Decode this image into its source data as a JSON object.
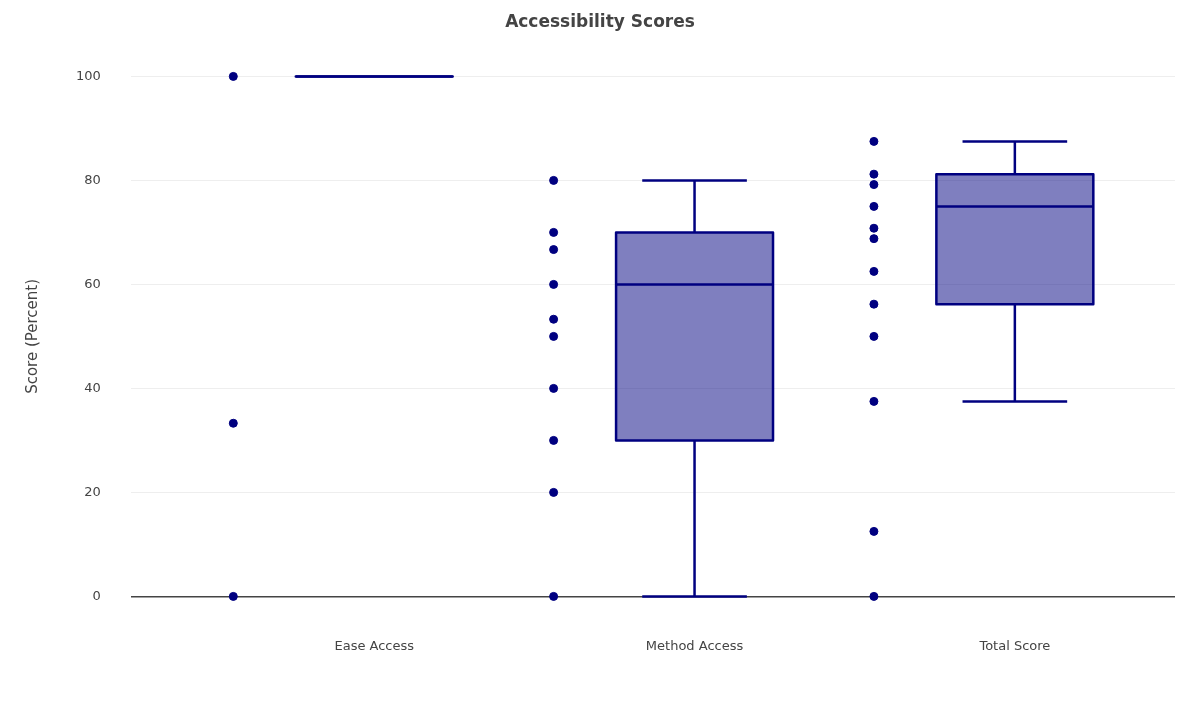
{
  "chart_data": {
    "type": "box",
    "title": "Accessibility Scores",
    "ylabel": "Score (Percent)",
    "categories": [
      "Ease Access",
      "Method Access",
      "Total Score"
    ],
    "ylim": [
      0,
      100
    ],
    "yticks": [
      0,
      20,
      40,
      60,
      80,
      100
    ],
    "grid": "y",
    "legend": false,
    "series": [
      {
        "color": "#000080",
        "boxes": [
          {
            "low": 100,
            "q1": 100,
            "median": 100,
            "q3": 100,
            "high": 100
          },
          {
            "low": 0,
            "q1": 30,
            "median": 60,
            "q3": 70,
            "high": 80
          },
          {
            "low": 37.5,
            "q1": 56.2,
            "median": 75,
            "q3": 81.2,
            "high": 87.5
          }
        ]
      },
      {
        "type": "scatter",
        "color": "#000080",
        "marker": "circle",
        "x": [
          "Ease Access",
          "Ease Access",
          "Ease Access",
          "Method Access",
          "Method Access",
          "Method Access",
          "Method Access",
          "Method Access",
          "Method Access",
          "Method Access",
          "Method Access",
          "Method Access",
          "Method Access",
          "Total Score",
          "Total Score",
          "Total Score",
          "Total Score",
          "Total Score",
          "Total Score",
          "Total Score",
          "Total Score",
          "Total Score",
          "Total Score",
          "Total Score",
          "Total Score"
        ],
        "values": [
          100,
          33.3,
          0,
          80,
          70,
          66.7,
          60,
          53.3,
          50,
          40,
          30,
          20,
          0,
          87.5,
          81.2,
          79.2,
          75,
          70.8,
          68.8,
          62.5,
          56.2,
          50,
          37.5,
          12.5,
          0
        ]
      }
    ]
  }
}
